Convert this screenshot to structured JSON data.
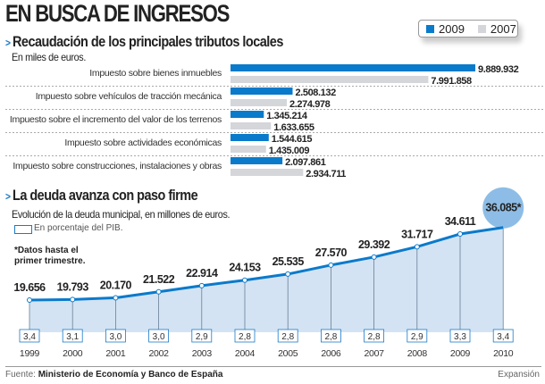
{
  "title": "EN BUSCA DE INGRESOS",
  "legend": [
    {
      "label": "2009",
      "color": "#0a7acb"
    },
    {
      "label": "2007",
      "color": "#d4d6da"
    }
  ],
  "chart_data": [
    {
      "type": "bar",
      "orientation": "horizontal",
      "title": "Recaudación de los principales tributos locales",
      "subtitle": "En miles de euros.",
      "categories": [
        "Impuesto sobre bienes inmuebles",
        "Impuesto sobre vehículos de tracción mecánica",
        "Impuesto sobre el incremento del valor de los terrenos",
        "Impuesto sobre actividades económicas",
        "Impuesto sobre construcciones, instalaciones y obras"
      ],
      "series": [
        {
          "name": "2009",
          "color": "#0a7acb",
          "values": [
            9889932,
            2508132,
            1345214,
            1544615,
            2097861
          ],
          "labels": [
            "9.889.932",
            "2.508.132",
            "1.345.214",
            "1.544.615",
            "2.097.861"
          ]
        },
        {
          "name": "2007",
          "color": "#d4d6da",
          "values": [
            7991858,
            2274978,
            1633655,
            1435009,
            2934711
          ],
          "labels": [
            "7.991.858",
            "2.274.978",
            "1.633.655",
            "1.435.009",
            "2.934.711"
          ]
        }
      ]
    },
    {
      "type": "area",
      "title": "La deuda avanza con paso firme",
      "subtitle": "Evolución de la deuda municipal, en millones de euros.",
      "legend_box_label": "En porcentaje del PIB.",
      "note": "*Datos hasta el primer trimestre.",
      "note_lines": [
        "*Datos hasta el",
        "primer trimestre."
      ],
      "x": [
        "1999",
        "2000",
        "2001",
        "2002",
        "2003",
        "2004",
        "2005",
        "2006",
        "2007",
        "2008",
        "2009",
        "2010"
      ],
      "values": [
        19656,
        19793,
        20170,
        21522,
        22914,
        24153,
        25535,
        27570,
        29392,
        31717,
        34611,
        36085
      ],
      "value_labels": [
        "19.656",
        "19.793",
        "20.170",
        "21.522",
        "22.914",
        "24.153",
        "25.535",
        "27.570",
        "29.392",
        "31.717",
        "34.611",
        "36.085*"
      ],
      "pib_percent": [
        "3,4",
        "3,1",
        "3,0",
        "3,0",
        "2,9",
        "2,8",
        "2,8",
        "2,8",
        "2,8",
        "2,9",
        "3,3",
        "3,4"
      ],
      "line_color": "#0a7acb",
      "fill_color": "#d3e3f3",
      "highlight_color": "#8dbde6"
    }
  ],
  "footer": {
    "source_label": "Fuente:",
    "source": "Ministerio de Economía y Banco de España",
    "credit": "Expansión"
  }
}
